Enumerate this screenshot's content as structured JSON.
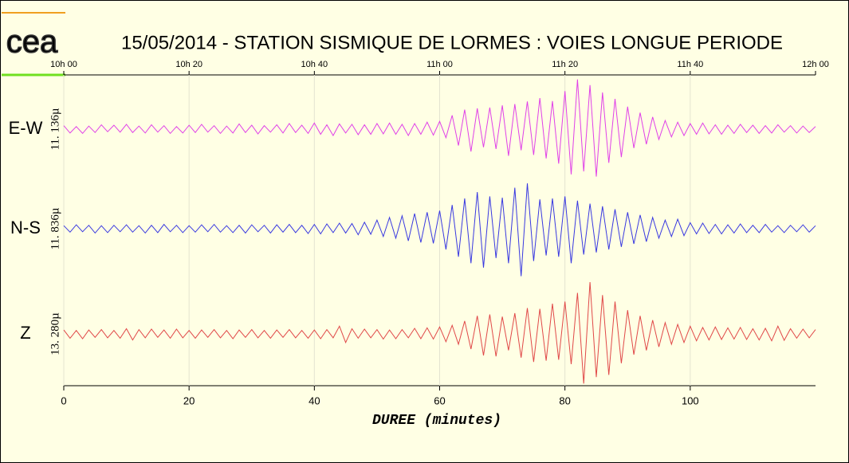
{
  "chart_data": {
    "type": "line",
    "logo": "cea",
    "title": "15/05/2014  -  STATION SISMIQUE DE LORMES : VOIES LONGUE PERIODE",
    "x_label": "DUREE (minutes)",
    "xlim": [
      0,
      120
    ],
    "xticks": [
      0,
      20,
      40,
      60,
      80,
      100
    ],
    "top_ticks": [
      {
        "value": 0,
        "label": "10h 00"
      },
      {
        "value": 20,
        "label": "10h 20"
      },
      {
        "value": 40,
        "label": "10h 40"
      },
      {
        "value": 60,
        "label": "11h 00"
      },
      {
        "value": 80,
        "label": "11h 20"
      },
      {
        "value": 100,
        "label": "11h 40"
      },
      {
        "value": 120,
        "label": "12h 00"
      }
    ],
    "ylim": [
      -12,
      12
    ],
    "grid": true,
    "x": [
      0,
      1,
      2,
      3,
      4,
      5,
      6,
      7,
      8,
      9,
      10,
      11,
      12,
      13,
      14,
      15,
      16,
      17,
      18,
      19,
      20,
      21,
      22,
      23,
      24,
      25,
      26,
      27,
      28,
      29,
      30,
      31,
      32,
      33,
      34,
      35,
      36,
      37,
      38,
      39,
      40,
      41,
      42,
      43,
      44,
      45,
      46,
      47,
      48,
      49,
      50,
      51,
      52,
      53,
      54,
      55,
      56,
      57,
      58,
      59,
      60,
      61,
      62,
      63,
      64,
      65,
      66,
      67,
      68,
      69,
      70,
      71,
      72,
      73,
      74,
      75,
      76,
      77,
      78,
      79,
      80,
      81,
      82,
      83,
      84,
      85,
      86,
      87,
      88,
      89,
      90,
      91,
      92,
      93,
      94,
      95,
      96,
      97,
      98,
      99,
      100,
      101,
      102,
      103,
      104,
      105,
      106,
      107,
      108,
      109,
      110,
      111,
      112,
      113,
      114,
      115,
      116,
      117,
      118,
      119,
      120
    ],
    "series": [
      {
        "name": "E-W",
        "scale_label": "11. 136µ",
        "color": "#e040e8",
        "values": [
          0.8,
          -0.9,
          0.6,
          -1.0,
          0.7,
          -0.8,
          1.0,
          -0.6,
          0.9,
          -0.7,
          1.1,
          -0.8,
          0.7,
          -0.9,
          1.0,
          -0.7,
          0.8,
          -1.0,
          0.6,
          -0.9,
          0.9,
          -0.8,
          1.1,
          -0.7,
          0.8,
          -1.0,
          0.7,
          -0.9,
          1.2,
          -0.8,
          0.9,
          -1.1,
          0.8,
          -0.7,
          1.0,
          -0.9,
          1.3,
          -0.8,
          0.9,
          -1.0,
          1.4,
          -1.2,
          1.0,
          -1.5,
          1.2,
          -0.9,
          1.1,
          -1.3,
          1.0,
          -1.2,
          1.3,
          -1.1,
          1.4,
          -1.2,
          1.1,
          -1.5,
          1.3,
          -1.2,
          1.6,
          -1.4,
          1.8,
          -2.0,
          3.2,
          -3.8,
          4.5,
          -5.2,
          4.8,
          -4.2,
          5.0,
          -4.6,
          5.5,
          -6.2,
          5.8,
          -4.9,
          6.4,
          -6.0,
          7.2,
          -6.8,
          6.5,
          -8.0,
          8.8,
          -10.5,
          11.5,
          -9.8,
          10.2,
          -11.0,
          8.5,
          -7.8,
          7.0,
          -6.5,
          5.2,
          -4.4,
          3.8,
          -3.5,
          2.8,
          -2.4,
          2.0,
          -1.8,
          1.6,
          -1.5,
          1.3,
          -1.2,
          1.4,
          -1.1,
          1.0,
          -1.2,
          0.9,
          -1.0,
          1.1,
          -0.8,
          0.9,
          -1.0,
          0.8,
          -0.9,
          1.0,
          -0.7,
          0.8,
          -0.9,
          0.7,
          -0.8,
          0.6
        ]
      },
      {
        "name": "N-S",
        "scale_label": "11. 836µ",
        "color": "#3838e0",
        "values": [
          0.7,
          -0.8,
          0.9,
          -0.7,
          0.8,
          -1.0,
          0.7,
          -0.9,
          0.8,
          -0.7,
          0.9,
          -0.8,
          0.7,
          -1.0,
          0.8,
          -0.9,
          1.0,
          -0.7,
          0.8,
          -0.9,
          0.7,
          -0.8,
          0.9,
          -0.7,
          1.0,
          -0.8,
          0.7,
          -0.9,
          0.8,
          -1.0,
          0.9,
          -0.7,
          0.8,
          -1.0,
          0.9,
          -0.8,
          1.0,
          -0.9,
          0.8,
          -1.1,
          1.0,
          -1.2,
          1.1,
          -0.9,
          1.3,
          -1.0,
          1.2,
          -1.4,
          1.5,
          -1.3,
          2.0,
          -1.8,
          2.6,
          -2.2,
          3.0,
          -2.8,
          3.5,
          -3.2,
          3.8,
          -3.4,
          4.2,
          -4.8,
          5.5,
          -6.5,
          7.0,
          -8.0,
          8.5,
          -9.0,
          7.5,
          -6.8,
          7.2,
          -8.0,
          9.5,
          -11.0,
          10.5,
          -7.5,
          6.8,
          -6.2,
          7.0,
          -6.5,
          7.5,
          -8.0,
          6.5,
          -6.0,
          5.8,
          -5.5,
          5.2,
          -4.8,
          4.5,
          -4.2,
          3.8,
          -3.5,
          3.2,
          -3.0,
          2.6,
          -2.2,
          2.0,
          -1.8,
          2.2,
          -1.6,
          1.4,
          -1.2,
          1.3,
          -1.1,
          1.0,
          -1.2,
          0.9,
          -1.0,
          1.1,
          -0.9,
          0.8,
          -0.9,
          1.0,
          -0.8,
          0.7,
          -0.9,
          0.8,
          -0.7,
          0.9,
          -0.8,
          0.7
        ]
      },
      {
        "name": "Z",
        "scale_label": "13. 280µ",
        "color": "#e04848",
        "values": [
          0.9,
          -1.0,
          0.8,
          -1.1,
          0.9,
          -0.8,
          1.0,
          -0.9,
          0.8,
          -1.0,
          1.2,
          -1.4,
          1.0,
          -0.9,
          1.1,
          -0.8,
          0.9,
          -1.0,
          1.1,
          -0.9,
          0.8,
          -1.0,
          0.9,
          -0.8,
          1.0,
          -0.9,
          0.8,
          -1.1,
          0.9,
          -0.8,
          1.0,
          -0.9,
          0.8,
          -1.0,
          0.9,
          -0.8,
          1.0,
          -0.9,
          0.8,
          -1.0,
          0.9,
          -1.1,
          1.0,
          -0.9,
          1.8,
          -2.0,
          1.2,
          -1.0,
          1.1,
          -0.9,
          1.0,
          -1.2,
          0.9,
          -1.1,
          1.0,
          -0.9,
          1.3,
          -1.1,
          1.4,
          -1.2,
          1.6,
          -1.8,
          2.0,
          -2.4,
          3.0,
          -3.5,
          4.2,
          -5.0,
          4.5,
          -5.2,
          4.0,
          -3.8,
          4.8,
          -5.5,
          6.0,
          -6.5,
          5.8,
          -6.2,
          7.0,
          -6.0,
          7.5,
          -7.0,
          9.5,
          -11.5,
          12.0,
          -10.0,
          9.0,
          -9.5,
          7.5,
          -6.8,
          5.5,
          -4.8,
          4.2,
          -3.8,
          3.2,
          -3.0,
          2.6,
          -2.4,
          2.2,
          -2.0,
          1.8,
          -1.6,
          1.5,
          -1.4,
          1.6,
          -1.3,
          1.4,
          -1.2,
          1.5,
          -1.3,
          1.2,
          -1.4,
          1.3,
          -1.6,
          1.8,
          -1.5,
          1.2,
          -1.0,
          1.1,
          -0.9,
          1.0
        ]
      }
    ]
  }
}
